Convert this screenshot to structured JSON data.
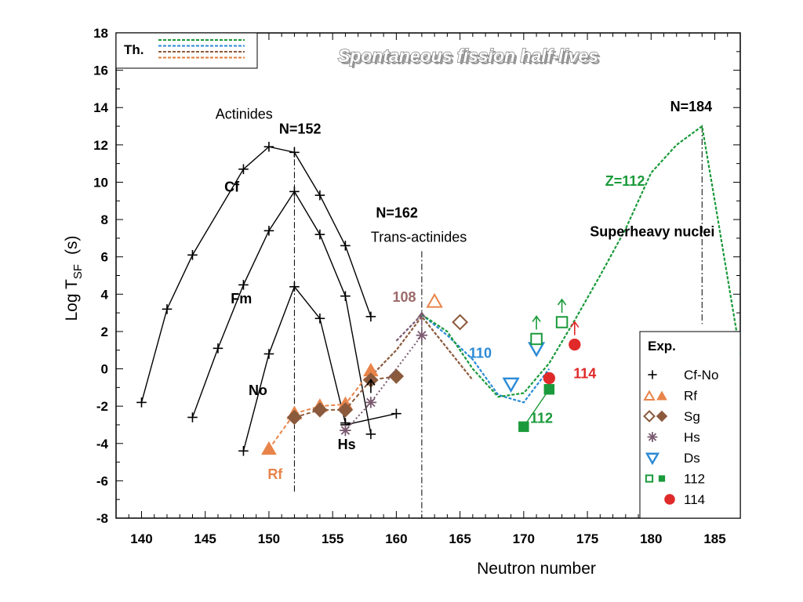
{
  "chart_data": {
    "type": "line",
    "title": "Spontaneous fission half-lives",
    "xlabel": "Neutron number",
    "ylabel_main": "Log T",
    "ylabel_sub": "SF",
    "ylabel_unit": "(s)",
    "xlim": [
      138,
      187
    ],
    "ylim": [
      -8,
      18
    ],
    "x_ticks": [
      140,
      145,
      150,
      155,
      160,
      165,
      170,
      175,
      180,
      185
    ],
    "y_ticks": [
      -8,
      -6,
      -4,
      -2,
      0,
      2,
      4,
      6,
      8,
      10,
      12,
      14,
      16,
      18
    ],
    "grid": false,
    "theory_legend": {
      "label": "Th.",
      "placement": "top-left",
      "colors": [
        "#1a9a3a",
        "#2a8ad6",
        "#8b5a3c",
        "#e07a3a"
      ]
    },
    "exp_legend": {
      "title": "Exp.",
      "placement": "bottom-right",
      "entries": [
        {
          "symbol": "plus",
          "color": "#000000",
          "label": "Cf-No"
        },
        {
          "symbol": "triangle-up-pair",
          "color": "#e8844a",
          "label": "Rf"
        },
        {
          "symbol": "diamond-pair",
          "color": "#8b5a3c",
          "label": "Sg"
        },
        {
          "symbol": "asterisk",
          "color": "#7a5a70",
          "label": "Hs"
        },
        {
          "symbol": "triangle-down",
          "color": "#2a8ad6",
          "label": "Ds"
        },
        {
          "symbol": "square-pair",
          "color": "#1a9a3a",
          "label": "112"
        },
        {
          "symbol": "circle",
          "color": "#e02a2a",
          "label": "114"
        }
      ]
    },
    "series": [
      {
        "name": "Cf",
        "color": "#000000",
        "marker": "plus",
        "style": "solid",
        "x": [
          140,
          142,
          144,
          148,
          150,
          152,
          154,
          156,
          158
        ],
        "y": [
          -1.8,
          3.2,
          6.1,
          10.7,
          11.9,
          11.6,
          9.3,
          6.6,
          2.8
        ]
      },
      {
        "name": "Fm",
        "color": "#000000",
        "marker": "plus",
        "style": "solid",
        "x": [
          144,
          146,
          148,
          150,
          152,
          154,
          156,
          158
        ],
        "y": [
          -2.6,
          1.1,
          4.5,
          7.4,
          9.5,
          7.2,
          3.9,
          -3.5
        ]
      },
      {
        "name": "No",
        "color": "#000000",
        "marker": "plus",
        "style": "solid",
        "x": [
          148,
          150,
          152,
          154,
          156
        ],
        "y": [
          -4.4,
          0.8,
          4.4,
          2.7,
          -2.9
        ]
      },
      {
        "name": "Hs",
        "color": "#000000",
        "marker": "plus",
        "style": "solid",
        "x": [
          156,
          160
        ],
        "y": [
          -3.0,
          -2.4
        ]
      },
      {
        "name": "Rf",
        "color": "#e8844a",
        "marker": "triangle-up-filled",
        "style": "dashed",
        "x": [
          150,
          152,
          154,
          156,
          158
        ],
        "y": [
          -4.3,
          -2.4,
          -2.0,
          -1.9,
          -0.1
        ]
      },
      {
        "name": "Rf-open",
        "color": "#e8844a",
        "marker": "triangle-up-open",
        "style": "none",
        "x": [
          163
        ],
        "y": [
          3.6
        ]
      },
      {
        "name": "Sg",
        "color": "#8b5a3c",
        "marker": "diamond-filled",
        "style": "dashed",
        "x": [
          152,
          154,
          156,
          158,
          160
        ],
        "y": [
          -2.6,
          -2.2,
          -2.2,
          -0.6,
          -0.4
        ]
      },
      {
        "name": "Sg-open",
        "color": "#8b5a3c",
        "marker": "diamond-open",
        "style": "none",
        "x": [
          165
        ],
        "y": [
          2.5
        ]
      },
      {
        "name": "Hs-exp",
        "color": "#7a5a70",
        "marker": "asterisk",
        "style": "dotted",
        "x": [
          156,
          158,
          162
        ],
        "y": [
          -3.3,
          -1.8,
          1.8
        ]
      },
      {
        "name": "Ds",
        "color": "#2a8ad6",
        "marker": "triangle-down-open",
        "style": "none",
        "x": [
          169,
          171
        ],
        "y": [
          -0.8,
          1.1
        ]
      },
      {
        "name": "112-open",
        "color": "#1a9a3a",
        "marker": "square-open",
        "style": "none",
        "x": [
          171,
          173
        ],
        "y": [
          1.6,
          2.5
        ]
      },
      {
        "name": "112-filled",
        "color": "#1a9a3a",
        "marker": "square-filled",
        "style": "solid",
        "x": [
          170,
          172
        ],
        "y": [
          -3.1,
          -1.1
        ]
      },
      {
        "name": "114",
        "color": "#e02a2a",
        "marker": "circle",
        "style": "none",
        "x": [
          172,
          174
        ],
        "y": [
          -0.5,
          1.3
        ]
      }
    ],
    "theory": [
      {
        "color": "#8b5a3c",
        "x": [
          158,
          160,
          162,
          166
        ],
        "y": [
          -0.4,
          1.0,
          2.8,
          -0.6
        ]
      },
      {
        "color": "#7a5a70",
        "x": [
          160,
          162
        ],
        "y": [
          1.5,
          2.9
        ]
      },
      {
        "color": "#2a8ad6",
        "x": [
          162,
          164,
          166,
          168,
          170,
          172
        ],
        "y": [
          2.9,
          1.8,
          0.5,
          -1.4,
          -1.8,
          0.0
        ]
      },
      {
        "color": "#1a9a3a",
        "x": [
          162,
          164,
          166,
          168,
          170,
          172,
          174,
          176,
          178,
          180,
          182,
          184,
          185,
          187
        ],
        "y": [
          2.9,
          2.0,
          0.0,
          -1.5,
          -1.3,
          0.3,
          2.6,
          5.0,
          7.5,
          10.5,
          12.0,
          13.0,
          9.0,
          0.8
        ]
      }
    ],
    "reference_lines": [
      {
        "x": 152,
        "y_from": -6.6,
        "y_to": 11.9,
        "label": "N=152"
      },
      {
        "x": 162,
        "y_from": -8,
        "y_to": 6.3,
        "label": "N=162"
      },
      {
        "x": 184,
        "y_from": 2.4,
        "y_to": 13.0,
        "label": "N=184"
      }
    ],
    "annotations": [
      {
        "text": "Actinides",
        "x": 145.8,
        "y": 13.4,
        "color": "#000000",
        "bold": false
      },
      {
        "text": "N=152",
        "x": 150.8,
        "y": 12.6,
        "color": "#000000",
        "bold": true
      },
      {
        "text": "Cf",
        "x": 146.5,
        "y": 9.5,
        "color": "#000000",
        "bold": true
      },
      {
        "text": "Fm",
        "x": 147.0,
        "y": 3.5,
        "color": "#000000",
        "bold": true
      },
      {
        "text": "No",
        "x": 148.4,
        "y": -1.4,
        "color": "#000000",
        "bold": true
      },
      {
        "text": "Hs",
        "x": 155.4,
        "y": -4.3,
        "color": "#000000",
        "bold": true
      },
      {
        "text": "Rf",
        "x": 149.9,
        "y": -5.9,
        "color": "#e8844a",
        "bold": true
      },
      {
        "text": "N=162",
        "x": 158.4,
        "y": 8.1,
        "color": "#000000",
        "bold": true
      },
      {
        "text": "Trans-actinides",
        "x": 158.0,
        "y": 6.8,
        "color": "#000000",
        "bold": false
      },
      {
        "text": "108",
        "x": 159.7,
        "y": 3.6,
        "color": "#9c6a6a",
        "bold": true
      },
      {
        "text": "110",
        "x": 165.7,
        "y": 0.6,
        "color": "#2a8ad6",
        "bold": true
      },
      {
        "text": "114",
        "x": 173.9,
        "y": -0.5,
        "color": "#e02a2a",
        "bold": true
      },
      {
        "text": "112",
        "x": 170.5,
        "y": -2.9,
        "color": "#1a9a3a",
        "bold": true
      },
      {
        "text": "Z=112",
        "x": 176.4,
        "y": 9.8,
        "color": "#1a9a3a",
        "bold": true
      },
      {
        "text": "N=184",
        "x": 181.5,
        "y": 13.8,
        "color": "#000000",
        "bold": true
      },
      {
        "text": "Superheavy nuclei",
        "x": 175.2,
        "y": 7.1,
        "color": "#000000",
        "bold": true
      }
    ],
    "limit_arrows": [
      {
        "x": 158,
        "y": -1.8,
        "color": "#000000"
      },
      {
        "x": 162,
        "y": 1.8,
        "color": "#7a5a70"
      },
      {
        "x": 171,
        "y": 1.6,
        "color": "#1a9a3a"
      },
      {
        "x": 173,
        "y": 2.5,
        "color": "#1a9a3a"
      },
      {
        "x": 174,
        "y": 1.3,
        "color": "#e02a2a"
      }
    ]
  }
}
